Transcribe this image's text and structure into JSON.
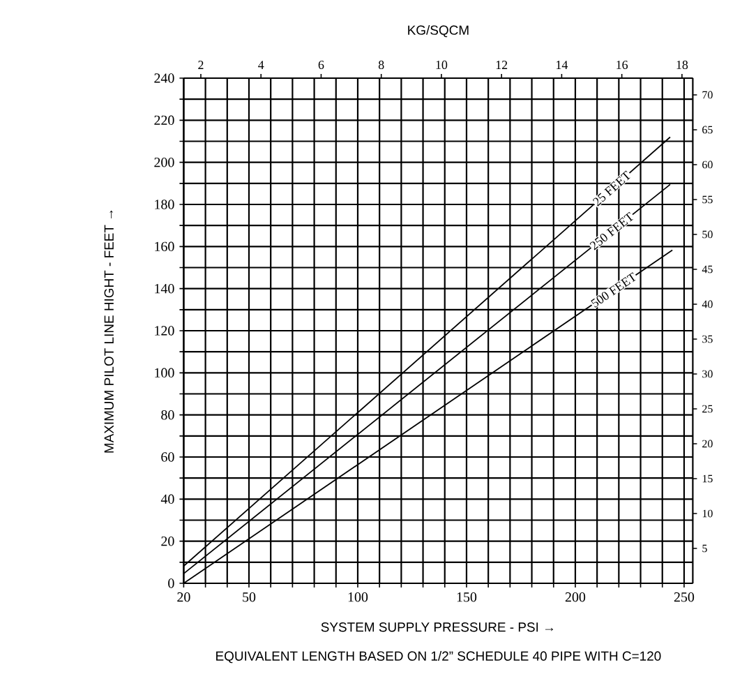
{
  "chart_data": {
    "type": "line",
    "xlabel": "SYSTEM SUPPLY PRESSURE - PSI →",
    "ylabel": "MAXIMUM PILOT LINE HIGHT - FEET →",
    "x2label": "KG/SQCM",
    "annotations": [
      "EQUIVALENT LENGTH BASED ON 1/2” SCHEDULE 40 PIPE WITH C=120"
    ],
    "xlim": [
      20,
      254
    ],
    "xticks": [
      20,
      {
        "value": 30,
        "label": null
      },
      {
        "value": 40,
        "label": null
      },
      50,
      {
        "value": 60,
        "label": null
      },
      {
        "value": 70,
        "label": null
      },
      {
        "value": 80,
        "label": null
      },
      {
        "value": 90,
        "label": null
      },
      100,
      {
        "value": 110,
        "label": null
      },
      {
        "value": 120,
        "label": null
      },
      {
        "value": 130,
        "label": null
      },
      {
        "value": 140,
        "label": null
      },
      150,
      {
        "value": 160,
        "label": null
      },
      {
        "value": 170,
        "label": null
      },
      {
        "value": 180,
        "label": null
      },
      {
        "value": 190,
        "label": null
      },
      200,
      {
        "value": 210,
        "label": null
      },
      {
        "value": 220,
        "label": null
      },
      {
        "value": 230,
        "label": null
      },
      {
        "value": 240,
        "label": null
      },
      250
    ],
    "ylim": [
      0,
      240
    ],
    "yticks": [
      0,
      {
        "value": 10,
        "label": null
      },
      20,
      {
        "value": 30,
        "label": null
      },
      40,
      {
        "value": 50,
        "label": null
      },
      60,
      {
        "value": 70,
        "label": null
      },
      80,
      {
        "value": 90,
        "label": null
      },
      100,
      {
        "value": 110,
        "label": null
      },
      120,
      {
        "value": 130,
        "label": null
      },
      140,
      {
        "value": 150,
        "label": null
      },
      160,
      {
        "value": 170,
        "label": null
      },
      180,
      {
        "value": 190,
        "label": null
      },
      200,
      {
        "value": 210,
        "label": null
      },
      220,
      {
        "value": 230,
        "label": null
      },
      240
    ],
    "x2lim": [
      1.43,
      18.36
    ],
    "x2ticks": [
      2,
      4,
      6,
      8,
      10,
      12,
      14,
      16,
      18
    ],
    "y2lim": [
      0,
      72.4
    ],
    "y2ticks": [
      5,
      10,
      15,
      20,
      25,
      30,
      35,
      40,
      45,
      50,
      55,
      60,
      65,
      70
    ],
    "grid": true,
    "marker": "none",
    "line_style": "solid",
    "series": [
      {
        "name": "25 FEET",
        "color": "#000000",
        "x": [
          20,
          243.6
        ],
        "values": [
          8.2,
          212
        ]
      },
      {
        "name": "250 FEET",
        "color": "#000000",
        "x": [
          20,
          243.6
        ],
        "values": [
          4.6,
          189.5
        ]
      },
      {
        "name": "500 FEET",
        "color": "#000000",
        "x": [
          20,
          244.6
        ],
        "values": [
          0,
          158.3
        ]
      }
    ]
  }
}
